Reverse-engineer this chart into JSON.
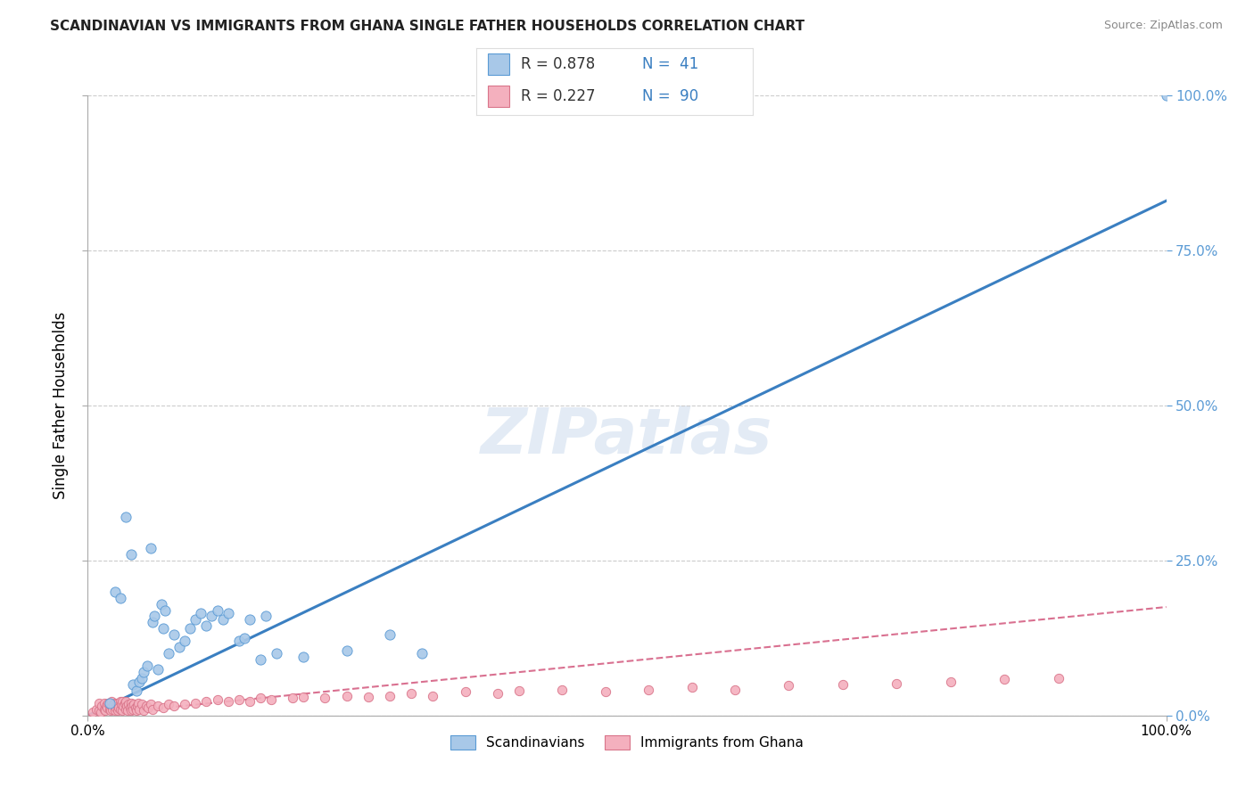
{
  "title": "SCANDINAVIAN VS IMMIGRANTS FROM GHANA SINGLE FATHER HOUSEHOLDS CORRELATION CHART",
  "source": "Source: ZipAtlas.com",
  "ylabel": "Single Father Households",
  "watermark": "ZIPatlas",
  "legend_scan_R": 0.878,
  "legend_scan_N": 41,
  "legend_ghana_R": 0.227,
  "legend_ghana_N": 90,
  "scan_color": "#a8c8e8",
  "scan_edge_color": "#5b9bd5",
  "ghana_color": "#f4b0be",
  "ghana_edge_color": "#d9758a",
  "scan_line_color": "#3a7fc1",
  "ghana_line_color": "#d97090",
  "grid_color": "#cccccc",
  "bg_color": "#ffffff",
  "right_tick_color": "#5b9bd5",
  "scandinavian_points": [
    [
      0.02,
      0.02
    ],
    [
      0.025,
      0.2
    ],
    [
      0.03,
      0.19
    ],
    [
      0.035,
      0.32
    ],
    [
      0.04,
      0.26
    ],
    [
      0.042,
      0.05
    ],
    [
      0.045,
      0.04
    ],
    [
      0.048,
      0.055
    ],
    [
      0.05,
      0.06
    ],
    [
      0.052,
      0.07
    ],
    [
      0.055,
      0.08
    ],
    [
      0.058,
      0.27
    ],
    [
      0.06,
      0.15
    ],
    [
      0.062,
      0.16
    ],
    [
      0.065,
      0.075
    ],
    [
      0.068,
      0.18
    ],
    [
      0.07,
      0.14
    ],
    [
      0.072,
      0.17
    ],
    [
      0.075,
      0.1
    ],
    [
      0.08,
      0.13
    ],
    [
      0.085,
      0.11
    ],
    [
      0.09,
      0.12
    ],
    [
      0.095,
      0.14
    ],
    [
      0.1,
      0.155
    ],
    [
      0.105,
      0.165
    ],
    [
      0.11,
      0.145
    ],
    [
      0.115,
      0.16
    ],
    [
      0.12,
      0.17
    ],
    [
      0.125,
      0.155
    ],
    [
      0.13,
      0.165
    ],
    [
      0.14,
      0.12
    ],
    [
      0.145,
      0.125
    ],
    [
      0.15,
      0.155
    ],
    [
      0.16,
      0.09
    ],
    [
      0.165,
      0.16
    ],
    [
      0.175,
      0.1
    ],
    [
      0.2,
      0.095
    ],
    [
      0.24,
      0.105
    ],
    [
      0.28,
      0.13
    ],
    [
      0.31,
      0.1
    ],
    [
      1.0,
      1.0
    ]
  ],
  "ghana_points": [
    [
      0.005,
      0.005
    ],
    [
      0.008,
      0.01
    ],
    [
      0.01,
      0.008
    ],
    [
      0.01,
      0.02
    ],
    [
      0.012,
      0.005
    ],
    [
      0.013,
      0.015
    ],
    [
      0.015,
      0.01
    ],
    [
      0.015,
      0.02
    ],
    [
      0.016,
      0.008
    ],
    [
      0.017,
      0.015
    ],
    [
      0.018,
      0.012
    ],
    [
      0.019,
      0.02
    ],
    [
      0.02,
      0.01
    ],
    [
      0.02,
      0.018
    ],
    [
      0.021,
      0.008
    ],
    [
      0.022,
      0.015
    ],
    [
      0.022,
      0.022
    ],
    [
      0.023,
      0.01
    ],
    [
      0.024,
      0.018
    ],
    [
      0.025,
      0.008
    ],
    [
      0.025,
      0.02
    ],
    [
      0.026,
      0.012
    ],
    [
      0.027,
      0.018
    ],
    [
      0.028,
      0.008
    ],
    [
      0.028,
      0.02
    ],
    [
      0.029,
      0.012
    ],
    [
      0.03,
      0.022
    ],
    [
      0.03,
      0.01
    ],
    [
      0.031,
      0.018
    ],
    [
      0.032,
      0.008
    ],
    [
      0.032,
      0.022
    ],
    [
      0.033,
      0.015
    ],
    [
      0.034,
      0.02
    ],
    [
      0.035,
      0.01
    ],
    [
      0.035,
      0.022
    ],
    [
      0.036,
      0.015
    ],
    [
      0.037,
      0.008
    ],
    [
      0.038,
      0.018
    ],
    [
      0.039,
      0.012
    ],
    [
      0.04,
      0.02
    ],
    [
      0.04,
      0.008
    ],
    [
      0.041,
      0.015
    ],
    [
      0.042,
      0.01
    ],
    [
      0.043,
      0.018
    ],
    [
      0.044,
      0.012
    ],
    [
      0.045,
      0.008
    ],
    [
      0.046,
      0.015
    ],
    [
      0.047,
      0.02
    ],
    [
      0.048,
      0.01
    ],
    [
      0.05,
      0.018
    ],
    [
      0.052,
      0.008
    ],
    [
      0.054,
      0.015
    ],
    [
      0.056,
      0.012
    ],
    [
      0.058,
      0.018
    ],
    [
      0.06,
      0.01
    ],
    [
      0.065,
      0.015
    ],
    [
      0.07,
      0.012
    ],
    [
      0.075,
      0.018
    ],
    [
      0.08,
      0.015
    ],
    [
      0.09,
      0.018
    ],
    [
      0.1,
      0.02
    ],
    [
      0.11,
      0.022
    ],
    [
      0.12,
      0.025
    ],
    [
      0.13,
      0.022
    ],
    [
      0.14,
      0.025
    ],
    [
      0.15,
      0.022
    ],
    [
      0.16,
      0.028
    ],
    [
      0.17,
      0.025
    ],
    [
      0.19,
      0.028
    ],
    [
      0.2,
      0.03
    ],
    [
      0.22,
      0.028
    ],
    [
      0.24,
      0.032
    ],
    [
      0.26,
      0.03
    ],
    [
      0.28,
      0.032
    ],
    [
      0.3,
      0.035
    ],
    [
      0.32,
      0.032
    ],
    [
      0.35,
      0.038
    ],
    [
      0.38,
      0.035
    ],
    [
      0.4,
      0.04
    ],
    [
      0.44,
      0.042
    ],
    [
      0.48,
      0.038
    ],
    [
      0.52,
      0.042
    ],
    [
      0.56,
      0.045
    ],
    [
      0.6,
      0.042
    ],
    [
      0.65,
      0.048
    ],
    [
      0.7,
      0.05
    ],
    [
      0.75,
      0.052
    ],
    [
      0.8,
      0.055
    ],
    [
      0.85,
      0.058
    ],
    [
      0.9,
      0.06
    ]
  ],
  "scan_trend": [
    0.0,
    1.0,
    0.0,
    0.83
  ],
  "ghana_trend": [
    0.0,
    1.0,
    0.0,
    0.175
  ],
  "xlim": [
    0.0,
    1.0
  ],
  "ylim": [
    0.0,
    1.0
  ]
}
